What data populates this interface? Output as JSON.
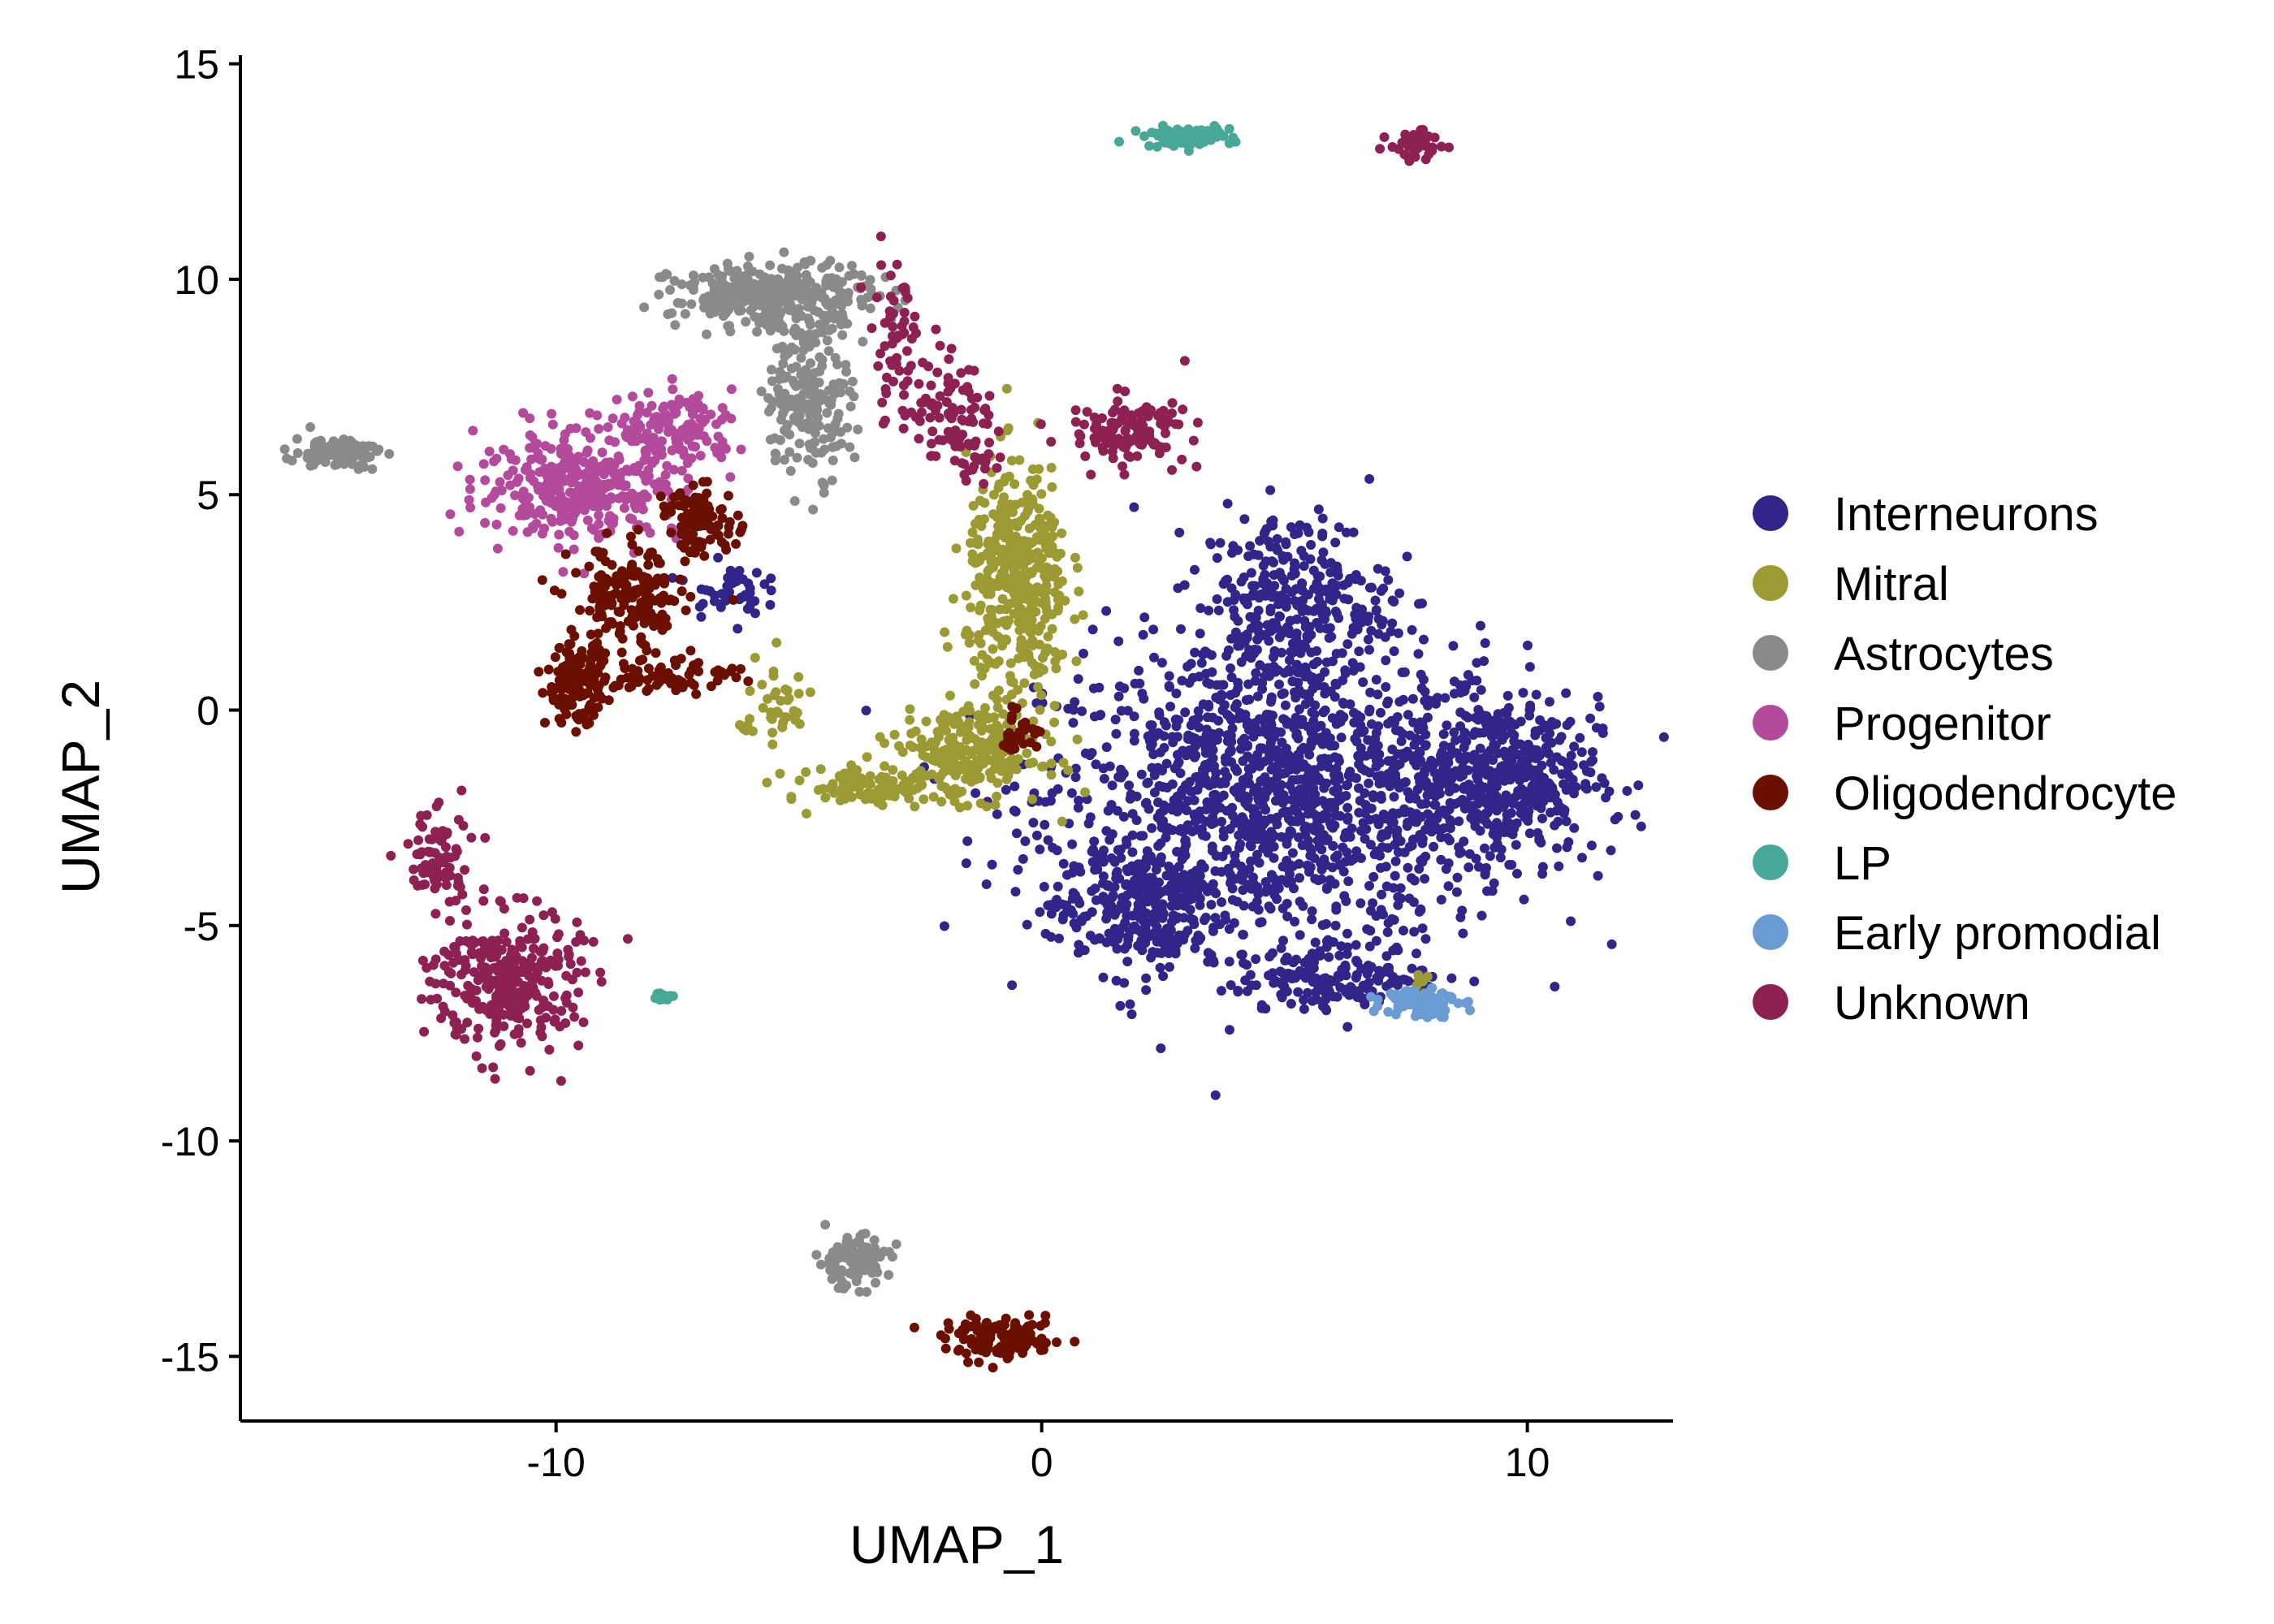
{
  "chart_data": {
    "type": "scatter",
    "title": "",
    "xlabel": "UMAP_1",
    "ylabel": "UMAP_2",
    "xlim": [
      -16.5,
      13
    ],
    "ylim": [
      -16.5,
      15.2
    ],
    "xticks": [
      -10,
      0,
      10
    ],
    "yticks": [
      15,
      10,
      5,
      0,
      -5,
      -10,
      -15
    ],
    "xtick_labels": [
      "-10",
      "0",
      "10"
    ],
    "ytick_labels": [
      "15",
      "10",
      "5",
      "0",
      "-5",
      "-10",
      "-15"
    ],
    "grid": false,
    "legend_position": "right",
    "series": [
      {
        "name": "Interneurons",
        "color": "#32258a",
        "clusters": [
          {
            "cx": 5,
            "cy": -2,
            "sx": 3.3,
            "sy": 2.3,
            "n": 1400
          },
          {
            "cx": 9.5,
            "cy": -1.5,
            "sx": 1.3,
            "sy": 1.2,
            "n": 380
          },
          {
            "cx": 5.2,
            "cy": 2.5,
            "sx": 1.3,
            "sy": 1.4,
            "n": 320
          },
          {
            "cx": 2,
            "cy": -4.6,
            "sx": 1.2,
            "sy": 1.0,
            "n": 280
          },
          {
            "cx": 6.2,
            "cy": -6.2,
            "sx": 1.4,
            "sy": 0.5,
            "n": 160
          },
          {
            "cx": -6.5,
            "cy": 2.8,
            "sx": 0.5,
            "sy": 0.4,
            "n": 45
          }
        ]
      },
      {
        "name": "Mitral",
        "color": "#9b9a33",
        "clusters": [
          {
            "cx": -0.5,
            "cy": 3,
            "sx": 0.7,
            "sy": 1.8,
            "n": 420
          },
          {
            "cx": -1.5,
            "cy": -1,
            "sx": 1.0,
            "sy": 0.7,
            "n": 260
          },
          {
            "cx": -3.5,
            "cy": -1.8,
            "sx": 0.8,
            "sy": 0.3,
            "n": 90
          },
          {
            "cx": -5.5,
            "cy": 0,
            "sx": 0.5,
            "sy": 0.8,
            "n": 45
          },
          {
            "cx": 7.8,
            "cy": -6.3,
            "sx": 0.1,
            "sy": 0.2,
            "n": 10
          }
        ]
      },
      {
        "name": "Astrocytes",
        "color": "#8a8a8a",
        "clusters": [
          {
            "cx": -5.5,
            "cy": 9.6,
            "sx": 1.4,
            "sy": 0.5,
            "n": 320
          },
          {
            "cx": -4.8,
            "cy": 7.3,
            "sx": 0.6,
            "sy": 1.2,
            "n": 200
          },
          {
            "cx": -14.5,
            "cy": 6,
            "sx": 0.6,
            "sy": 0.25,
            "n": 90
          },
          {
            "cx": -3.9,
            "cy": -12.8,
            "sx": 0.5,
            "sy": 0.4,
            "n": 110
          }
        ]
      },
      {
        "name": "Progenitor",
        "color": "#b44a9c",
        "clusters": [
          {
            "cx": -9.5,
            "cy": 5.2,
            "sx": 1.4,
            "sy": 0.8,
            "n": 360
          },
          {
            "cx": -7.5,
            "cy": 6.5,
            "sx": 0.8,
            "sy": 0.6,
            "n": 130
          }
        ]
      },
      {
        "name": "Oligodendrocyte",
        "color": "#6b0f00",
        "clusters": [
          {
            "cx": -9.6,
            "cy": 0.6,
            "sx": 0.4,
            "sy": 0.6,
            "n": 150
          },
          {
            "cx": -8.5,
            "cy": 2.5,
            "sx": 0.8,
            "sy": 0.9,
            "n": 180
          },
          {
            "cx": -7,
            "cy": 4.4,
            "sx": 0.5,
            "sy": 0.5,
            "n": 100
          },
          {
            "cx": -7.5,
            "cy": 0.8,
            "sx": 0.9,
            "sy": 0.3,
            "n": 70
          },
          {
            "cx": -0.8,
            "cy": -14.6,
            "sx": 0.8,
            "sy": 0.3,
            "n": 130
          },
          {
            "cx": -0.5,
            "cy": -0.5,
            "sx": 0.3,
            "sy": 0.3,
            "n": 30
          }
        ]
      },
      {
        "name": "LP",
        "color": "#48a898",
        "clusters": [
          {
            "cx": 3,
            "cy": 13.3,
            "sx": 0.6,
            "sy": 0.15,
            "n": 90
          },
          {
            "cx": -7.8,
            "cy": -6.65,
            "sx": 0.15,
            "sy": 0.06,
            "n": 16
          }
        ]
      },
      {
        "name": "Early promodial",
        "color": "#6a9bd2",
        "clusters": [
          {
            "cx": 7.8,
            "cy": -6.75,
            "sx": 0.5,
            "sy": 0.25,
            "n": 90
          }
        ]
      },
      {
        "name": "Unknown",
        "color": "#8e2153",
        "clusters": [
          {
            "cx": -11,
            "cy": -6.3,
            "sx": 1.0,
            "sy": 1.1,
            "n": 300
          },
          {
            "cx": -12.5,
            "cy": -3.5,
            "sx": 0.5,
            "sy": 0.8,
            "n": 70
          },
          {
            "cx": 1.8,
            "cy": 6.5,
            "sx": 0.8,
            "sy": 0.5,
            "n": 120
          },
          {
            "cx": 7.7,
            "cy": 13.1,
            "sx": 0.35,
            "sy": 0.25,
            "n": 60
          },
          {
            "cx": -3,
            "cy": 8.5,
            "sx": 0.4,
            "sy": 1.3,
            "n": 60
          },
          {
            "cx": -1.6,
            "cy": 6.2,
            "sx": 0.5,
            "sy": 0.6,
            "n": 60
          },
          {
            "cx": -2,
            "cy": 7.3,
            "sx": 0.5,
            "sy": 0.6,
            "n": 40
          }
        ]
      }
    ]
  }
}
